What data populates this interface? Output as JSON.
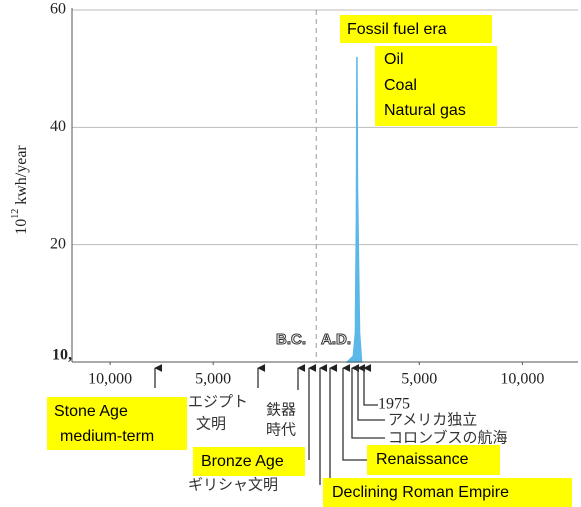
{
  "chart_data": {
    "type": "area",
    "y_label_base": "10",
    "y_label_exp": "12",
    "y_label_rest": "kwh/year",
    "x": [
      1500,
      1800,
      1900,
      1950,
      1975,
      2000,
      2100,
      2200
    ],
    "series": [
      {
        "name": "Fossil fuel era",
        "color": "#5bb8e8",
        "values": [
          0,
          1,
          5,
          25,
          52,
          30,
          5,
          0
        ]
      }
    ],
    "xlim": [
      -11850,
      12700
    ],
    "xticks": [
      {
        "value": -10000,
        "label": "10,000"
      },
      {
        "value": -5000,
        "label": "5,000"
      },
      {
        "value": 5000,
        "label": "5,000"
      },
      {
        "value": 10000,
        "label": "10,000"
      }
    ],
    "ylim": [
      0,
      60
    ],
    "yticks": [
      20,
      40,
      60
    ],
    "grid": true,
    "ref_x": 0,
    "era_labels": [
      "B.C.",
      "A.D."
    ],
    "axis_note": "10,",
    "fuels": [
      "Oil",
      "Coal",
      "Natural gas"
    ],
    "boxes": [
      "Stone Age",
      "medium-term",
      "Bronze Age",
      "Renaissance",
      "Declining Roman Empire"
    ],
    "japanese": [
      "エジプト",
      "文明",
      "鉄器",
      "時代",
      "ギリシャ文明",
      "1975",
      "アメリカ独立",
      "コロンブスの航海"
    ]
  }
}
